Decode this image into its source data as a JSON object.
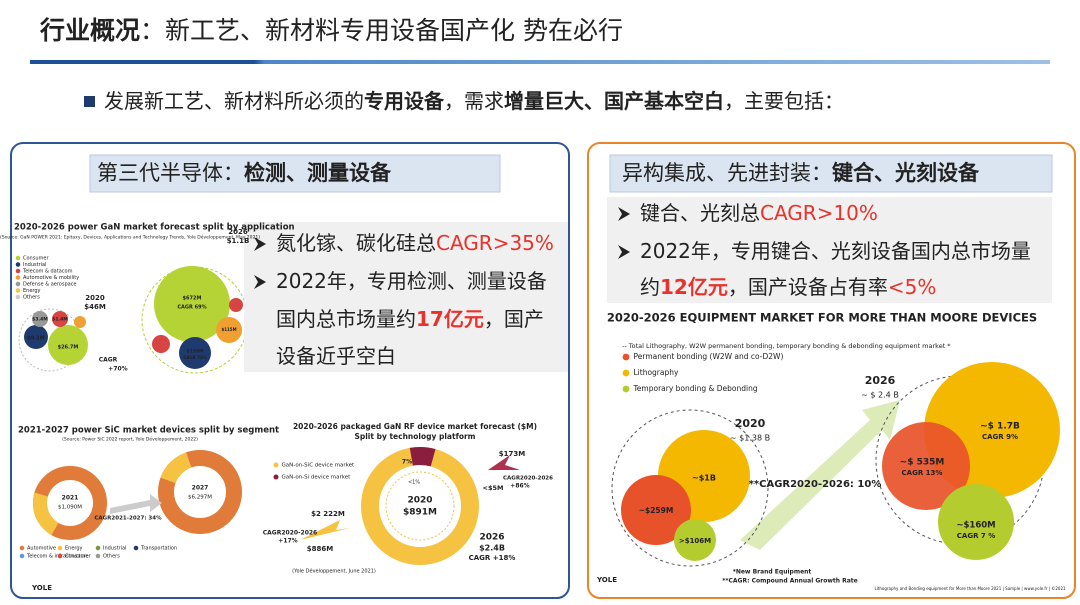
{
  "header": {
    "title": [
      "行业概况",
      "：新工艺、新材料专用设备国产化 势在必行"
    ]
  },
  "intro": [
    "发展新工艺、新材料所必须的",
    "专用设备",
    "，需求",
    "增量",
    "巨大、",
    "国产基本空白",
    "，主要包括："
  ],
  "left": {
    "heading": [
      "第三代半导体：",
      "检测、测量设备"
    ],
    "lines": [
      [
        "氮化镓、碳化硅总",
        "CAGR>35%"
      ],
      [
        "2022年，专用检测、测量设备"
      ],
      [
        "国内总市场量约",
        "17亿元",
        "，国产"
      ],
      [
        "设备近乎空白"
      ]
    ],
    "gan_power": {
      "title": "2020-2026 power GaN market forecast split by application",
      "source": "(Source: GaN POWER 2021: Epitaxy, Devices, Applications and Technology Trends, Yole Développement, May 2021)",
      "legend": [
        "Consumer",
        "Industrial",
        "Telecom & datacom",
        "Automotive & mobility",
        "Defense & aerospace",
        "Energy",
        "Others"
      ],
      "labels": [
        "2020",
        "$46M",
        "2026",
        "$1.1B",
        "$3.4M",
        "$1.4M",
        "$9.1M",
        "$26.7M",
        "$672M",
        "CAGR 69%",
        "$155M",
        "CAGR 73%",
        "$115M",
        "CAGR",
        "+70%"
      ]
    },
    "sic": {
      "title": "2021-2027 power SiC market devices split by segment",
      "source": "(Source: Power SiC 2022 report, Yole Développement, 2022)",
      "legend": [
        "Automotive",
        "Energy",
        "Industrial",
        "Transportation",
        "Telecom & infrastructure",
        "Consumer",
        "Others"
      ],
      "labels": [
        "2021",
        "$1,090M",
        "2027",
        "$6,297M",
        "CAGR2021-2027: 34%"
      ],
      "logo": "YOLE"
    },
    "gan_rf": {
      "title": [
        "2020-2026 packaged GaN RF device market forecast ($M)",
        "Split by technology platform"
      ],
      "legend": [
        "GaN-on-SiC device market",
        "GaN-on-Si device market"
      ],
      "labels": [
        "7%",
        "<1%",
        "$173M",
        "<$5M",
        "CAGR2020-2026",
        "+86%",
        "2020",
        "$891M",
        "$2 222M",
        "CAGR2020-2026",
        "+17%",
        "$886M",
        "2026",
        "$2.4B",
        "CAGR +18%",
        "(Yole Développement, June 2021)"
      ]
    }
  },
  "right": {
    "heading": [
      "异构集成、先进封装：",
      "键合、光刻设备"
    ],
    "lines": [
      [
        "键合、光刻总",
        "CAGR>10%"
      ],
      [
        "2022年，专用键合、光刻设备国内总市场量"
      ],
      [
        "约",
        "12亿元",
        "，国产设备占有率",
        "<5%"
      ]
    ],
    "mtm": {
      "title": "2020-2026 EQUIPMENT MARKET FOR MORE THAN MOORE DEVICES",
      "subtitle": "-- Total Lithography, W2W permanent bonding, temporary bonding & debonding equipment market *",
      "legend": [
        "Permanent bonding (W2W and co-D2W)",
        "Lithography",
        "Temporary bonding & Debonding"
      ],
      "labels": [
        "2020",
        "~ $1.38 B",
        "~$1B",
        "~$259M",
        ">$106M",
        "2026",
        "~ $ 2.4 B",
        "~$ 1.7B",
        "CAGR 9%",
        "~$ 535M",
        "CAGR 13%",
        "~$160M",
        "CAGR 7 %",
        "**CAGR2020-2026: 10%"
      ],
      "notes": [
        "*New Brand Equipment",
        "**CAGR: Compound Annual Growth Rate",
        "Lithography and Bonding equipment for More than Moore 2021 | Sample | www.yole.fr | ©2021"
      ],
      "logo": "YOLE"
    }
  }
}
